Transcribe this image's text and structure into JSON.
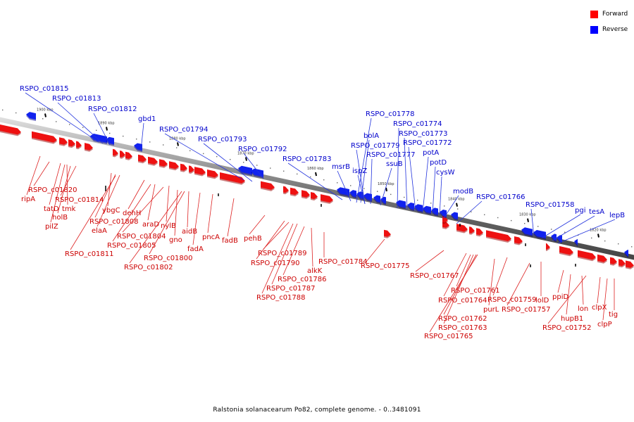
{
  "legend": [
    {
      "label": "Forward",
      "color": "#ff0000"
    },
    {
      "label": "Reverse",
      "color": "#0000ff"
    }
  ],
  "caption": "Ralstonia solanacearum Po82, complete genome. - 0..3481091",
  "ticks": [
    "1900 kbp",
    "1890 kbp",
    "1880 kbp",
    "1870 kbp",
    "1860 kbp",
    "1850 kbp",
    "1840 kbp",
    "1830 kbp",
    "1820 kbp"
  ],
  "genes_forward": [
    "RSPO_c01820",
    "ripA",
    "tatD",
    "tmk",
    "RSPO_c01814",
    "holB",
    "pilZ",
    "ybgC",
    "RSPO_c01808",
    "elaA",
    "dehH",
    "RSPO_c01811",
    "araD",
    "nylB",
    "RSPO_c01804",
    "RSPO_c01805",
    "aidB",
    "gno",
    "RSPO_c01800",
    "pncA",
    "fadA",
    "fadB",
    "RSPO_c01802",
    "pehB",
    "RSPO_c01789",
    "RSPO_c01790",
    "RSPO_c01784",
    "alkK",
    "RSPO_c01786",
    "RSPO_c01787",
    "RSPO_c01788",
    "RSPO_c01775",
    "RSPO_c01767",
    "RSPO_c01761",
    "RSPO_c01764",
    "RSPO_c01759",
    "lolD",
    "purL",
    "RSPO_c01757",
    "RSPO_c01762",
    "RSPO_c01763",
    "RSPO_c01765",
    "ppiD",
    "hupB1",
    "RSPO_c01752",
    "lon",
    "clpX",
    "tig",
    "clpP"
  ],
  "genes_reverse": [
    "RSPO_c01815",
    "RSPO_c01813",
    "RSPO_c01812",
    "gbd1",
    "RSPO_c01794",
    "RSPO_c01793",
    "RSPO_c01792",
    "RSPO_c01783",
    "msrB",
    "RSPO_c01778",
    "bolA",
    "RSPO_c01779",
    "ispZ",
    "RSPO_c01777",
    "ssuB",
    "RSPO_c01774",
    "RSPO_c01773",
    "RSPO_c01772",
    "potA",
    "potD",
    "cysW",
    "modB",
    "RSPO_c01766",
    "RSPO_c01758",
    "pgi",
    "tesA",
    "lepB"
  ]
}
